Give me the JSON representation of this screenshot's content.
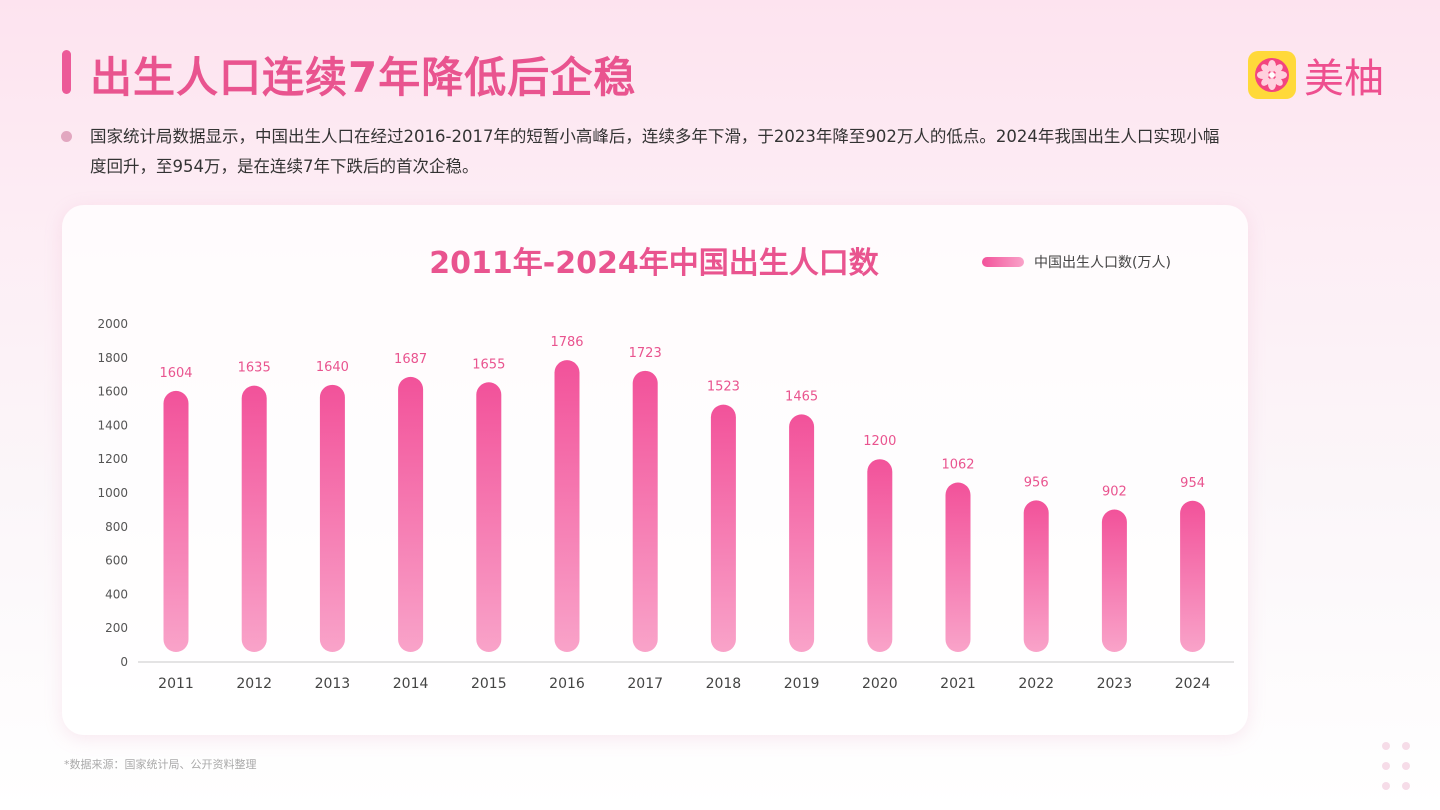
{
  "page": {
    "title": "出生人口连续7年降低后企稳",
    "description": "国家统计局数据显示，中国出生人口在经过2016-2017年的短暂小高峰后，连续多年下滑，于2023年降至902万人的低点。2024年我国出生人口实现小幅度回升，至954万，是在连续7年下跌后的首次企稳。",
    "source": "*数据来源：国家统计局、公开资料整理"
  },
  "brand": {
    "logo_text": "美柚",
    "icon": "grapefruit-slice-icon",
    "color": "#ee4f8f"
  },
  "colors": {
    "accent": "#ec5a98",
    "bar_top": "#f2529a",
    "bar_bottom": "#f9a3c9"
  },
  "chart_data": {
    "type": "bar",
    "title": "2011年-2024年中国出生人口数",
    "legend": {
      "label": "中国出生人口数(万人)",
      "position": "top-right"
    },
    "categories": [
      "2011",
      "2012",
      "2013",
      "2014",
      "2015",
      "2016",
      "2017",
      "2018",
      "2019",
      "2020",
      "2021",
      "2022",
      "2023",
      "2024"
    ],
    "series": [
      {
        "name": "中国出生人口数(万人)",
        "values": [
          1604,
          1635,
          1640,
          1687,
          1655,
          1786,
          1723,
          1523,
          1465,
          1200,
          1062,
          956,
          902,
          954
        ]
      }
    ],
    "ylim": [
      0,
      2000
    ],
    "yticks": [
      0,
      200,
      400,
      600,
      800,
      1000,
      1200,
      1400,
      1600,
      1800,
      2000
    ],
    "xlabel": "",
    "ylabel": "",
    "grid": false,
    "data_labels": true
  }
}
